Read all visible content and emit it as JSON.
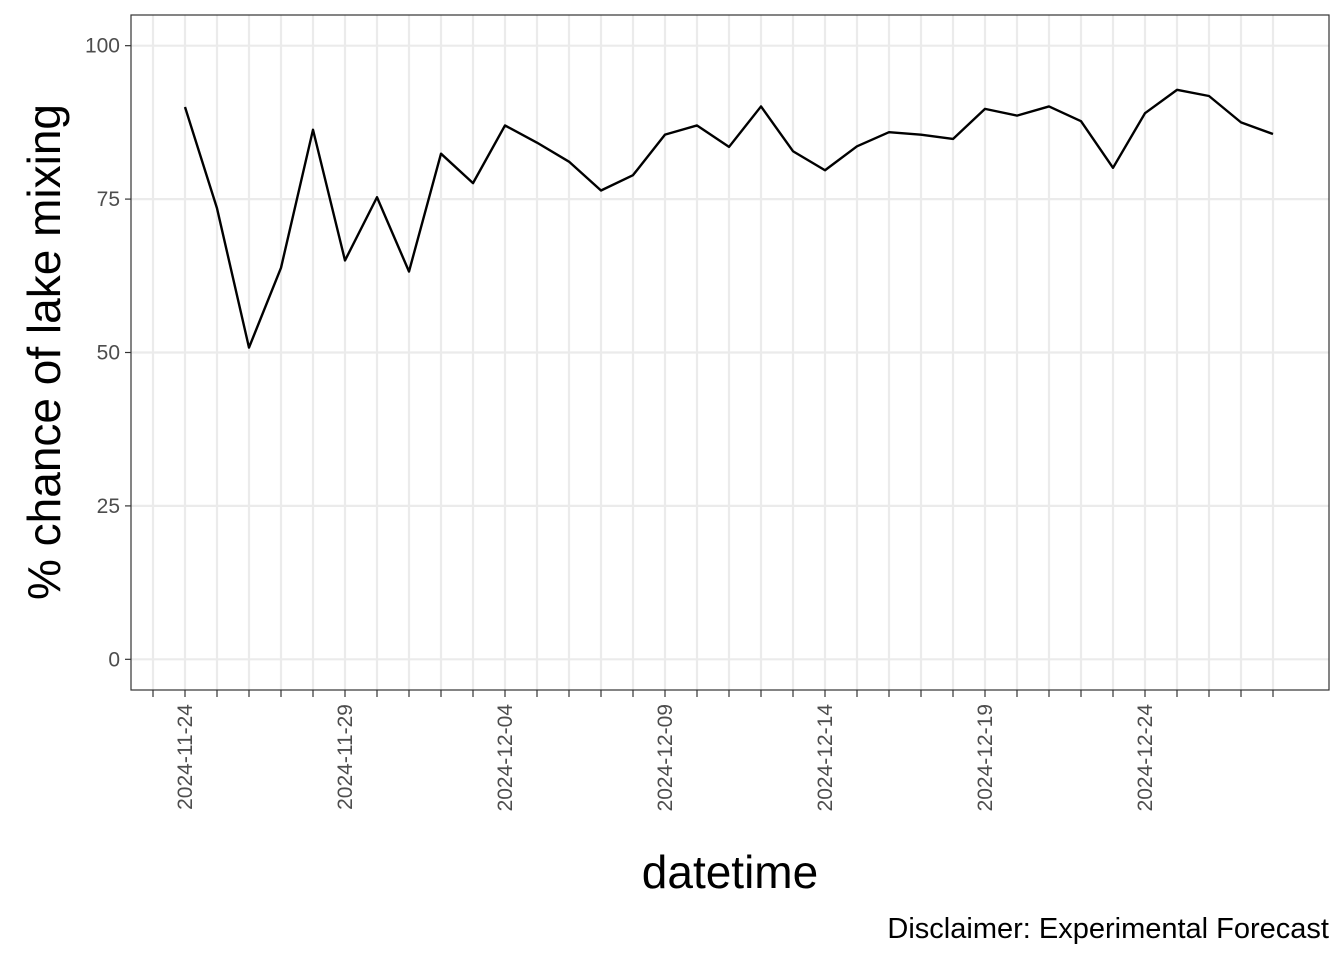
{
  "chart_data": {
    "type": "line",
    "xlabel": "datetime",
    "ylabel": "% chance of lake mixing",
    "caption": "Disclaimer: Experimental Forecast",
    "x_tick_labels": [
      "2024-11-24",
      "2024-11-29",
      "2024-12-04",
      "2024-12-09",
      "2024-12-14",
      "2024-12-19",
      "2024-12-24"
    ],
    "y_tick_labels": [
      "0",
      "25",
      "50",
      "75",
      "100"
    ],
    "ylim": [
      -5,
      105
    ],
    "xlim": [
      "2024-11-22",
      "2024-12-29"
    ],
    "grid": true,
    "line_color": "#000000",
    "series": [
      {
        "x": [
          "2024-11-24",
          "2024-11-25",
          "2024-11-26",
          "2024-11-27",
          "2024-11-28",
          "2024-11-29",
          "2024-11-30",
          "2024-12-01",
          "2024-12-02",
          "2024-12-03",
          "2024-12-04",
          "2024-12-05",
          "2024-12-06",
          "2024-12-07",
          "2024-12-08",
          "2024-12-09",
          "2024-12-10",
          "2024-12-11",
          "2024-12-12",
          "2024-12-13",
          "2024-12-14",
          "2024-12-15",
          "2024-12-16",
          "2024-12-17",
          "2024-12-18",
          "2024-12-19",
          "2024-12-20",
          "2024-12-21",
          "2024-12-22",
          "2024-12-23",
          "2024-12-24",
          "2024-12-25",
          "2024-12-26",
          "2024-12-27",
          "2024-12-28"
        ],
        "values": [
          90,
          73.5,
          50.8,
          63.8,
          86.3,
          65,
          75.3,
          63.2,
          82.4,
          77.6,
          87,
          84.2,
          81.1,
          76.4,
          78.9,
          85.5,
          87,
          83.5,
          90.1,
          82.8,
          79.7,
          83.6,
          85.9,
          85.5,
          84.8,
          89.7,
          88.6,
          90.1,
          87.7,
          80.1,
          89,
          92.8,
          91.8,
          87.5,
          85.6
        ]
      }
    ]
  }
}
